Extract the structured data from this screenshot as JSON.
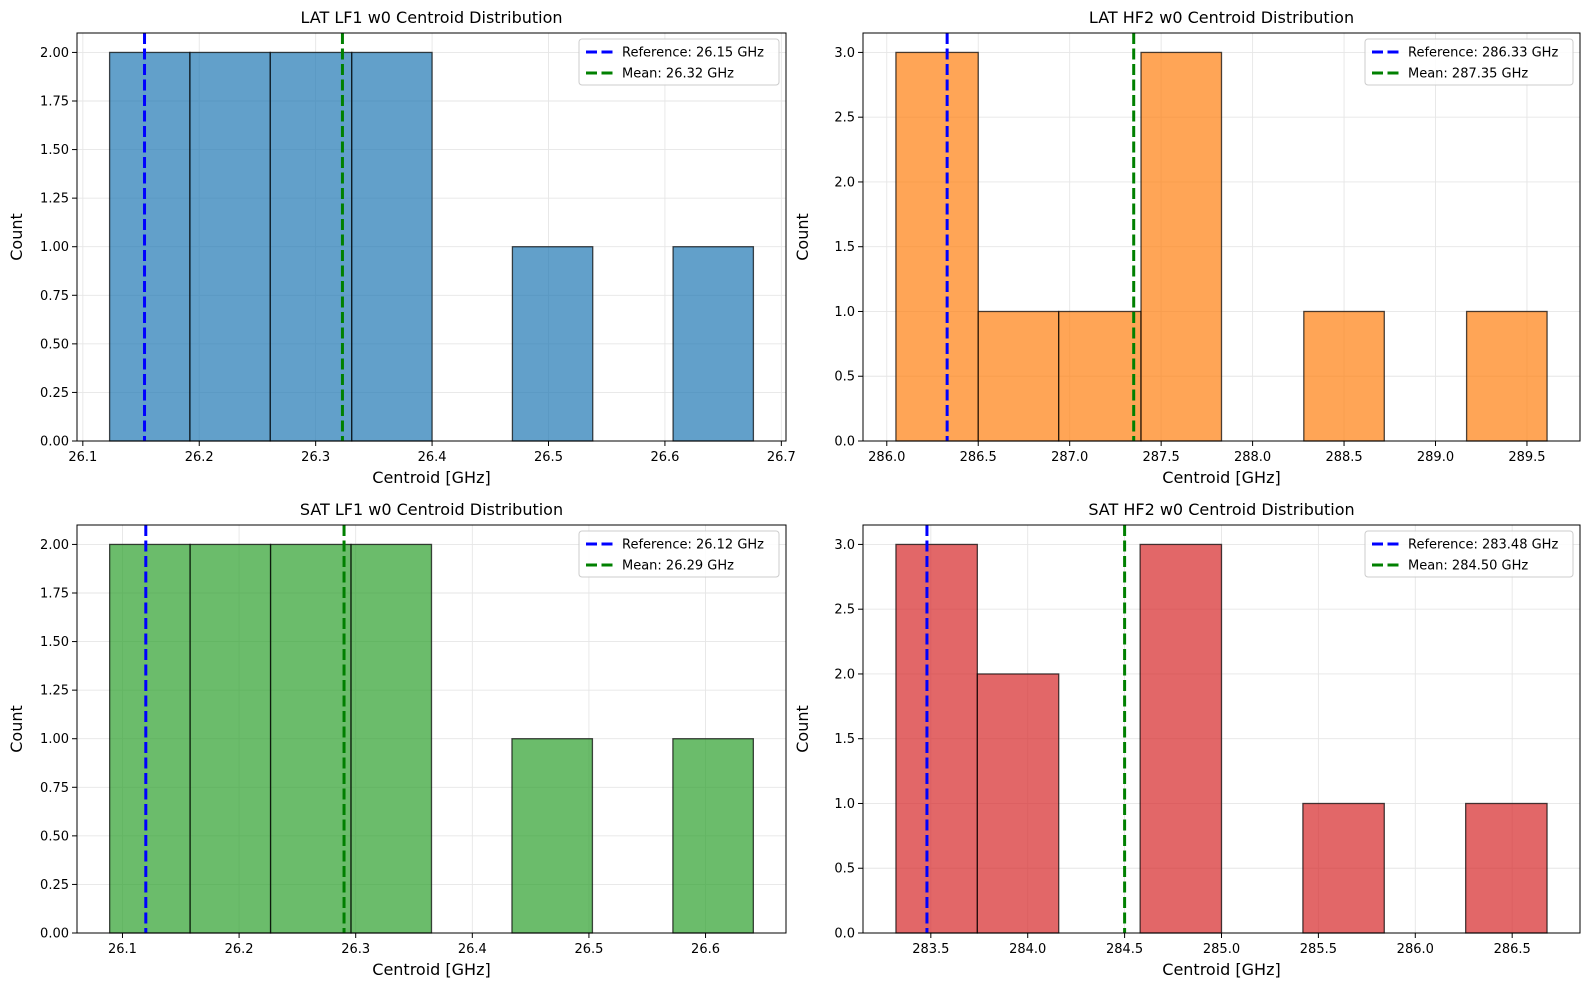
{
  "chart_data": [
    {
      "type": "bar",
      "title": "LAT LF1 w0 Centroid Distribution",
      "xlabel": "Centroid [GHz]",
      "ylabel": "Count",
      "color": "#1f77b4",
      "bins": [
        {
          "x0": 26.123,
          "x1": 26.192,
          "count": 2
        },
        {
          "x0": 26.192,
          "x1": 26.261,
          "count": 2
        },
        {
          "x0": 26.261,
          "x1": 26.331,
          "count": 2
        },
        {
          "x0": 26.331,
          "x1": 26.4,
          "count": 2
        },
        {
          "x0": 26.4,
          "x1": 26.469,
          "count": 0
        },
        {
          "x0": 26.469,
          "x1": 26.538,
          "count": 1
        },
        {
          "x0": 26.538,
          "x1": 26.607,
          "count": 0
        },
        {
          "x0": 26.607,
          "x1": 26.676,
          "count": 1
        }
      ],
      "xlim": [
        26.095,
        26.704
      ],
      "ylim": [
        0,
        2.1
      ],
      "xticks": [
        26.1,
        26.2,
        26.3,
        26.4,
        26.5,
        26.6,
        26.7
      ],
      "xtick_labels": [
        "26.1",
        "26.2",
        "26.3",
        "26.4",
        "26.5",
        "26.6",
        "26.7"
      ],
      "yticks": [
        0,
        0.25,
        0.5,
        0.75,
        1.0,
        1.25,
        1.5,
        1.75,
        2.0
      ],
      "ytick_labels": [
        "0.00",
        "0.25",
        "0.50",
        "0.75",
        "1.00",
        "1.25",
        "1.50",
        "1.75",
        "2.00"
      ],
      "reference": {
        "value": 26.153,
        "label": "Reference: 26.15 GHz"
      },
      "mean": {
        "value": 26.323,
        "label": "Mean: 26.32 GHz"
      },
      "grid": true,
      "legend": "upper right"
    },
    {
      "type": "bar",
      "title": "LAT HF2 w0 Centroid Distribution",
      "xlabel": "Centroid [GHz]",
      "ylabel": "Count",
      "color": "#ff7f0e",
      "bins": [
        {
          "x0": 286.05,
          "x1": 286.5,
          "count": 3
        },
        {
          "x0": 286.5,
          "x1": 286.94,
          "count": 1
        },
        {
          "x0": 286.94,
          "x1": 287.39,
          "count": 1
        },
        {
          "x0": 287.39,
          "x1": 287.83,
          "count": 3
        },
        {
          "x0": 287.83,
          "x1": 288.28,
          "count": 0
        },
        {
          "x0": 288.28,
          "x1": 288.72,
          "count": 1
        },
        {
          "x0": 288.72,
          "x1": 289.17,
          "count": 0
        },
        {
          "x0": 289.17,
          "x1": 289.61,
          "count": 1
        }
      ],
      "xlim": [
        285.87,
        289.79
      ],
      "ylim": [
        0,
        3.15
      ],
      "xticks": [
        286.0,
        286.5,
        287.0,
        287.5,
        288.0,
        288.5,
        289.0,
        289.5
      ],
      "xtick_labels": [
        "286.0",
        "286.5",
        "287.0",
        "287.5",
        "288.0",
        "288.5",
        "289.0",
        "289.5"
      ],
      "yticks": [
        0,
        0.5,
        1.0,
        1.5,
        2.0,
        2.5,
        3.0
      ],
      "ytick_labels": [
        "0.0",
        "0.5",
        "1.0",
        "1.5",
        "2.0",
        "2.5",
        "3.0"
      ],
      "reference": {
        "value": 286.33,
        "label": "Reference: 286.33 GHz"
      },
      "mean": {
        "value": 287.35,
        "label": "Mean: 287.35 GHz"
      },
      "grid": true,
      "legend": "upper right"
    },
    {
      "type": "bar",
      "title": "SAT LF1 w0 Centroid Distribution",
      "xlabel": "Centroid [GHz]",
      "ylabel": "Count",
      "color": "#2ca02c",
      "bins": [
        {
          "x0": 26.089,
          "x1": 26.158,
          "count": 2
        },
        {
          "x0": 26.158,
          "x1": 26.227,
          "count": 2
        },
        {
          "x0": 26.227,
          "x1": 26.296,
          "count": 2
        },
        {
          "x0": 26.296,
          "x1": 26.365,
          "count": 2
        },
        {
          "x0": 26.365,
          "x1": 26.434,
          "count": 0
        },
        {
          "x0": 26.434,
          "x1": 26.503,
          "count": 1
        },
        {
          "x0": 26.503,
          "x1": 26.572,
          "count": 0
        },
        {
          "x0": 26.572,
          "x1": 26.641,
          "count": 1
        }
      ],
      "xlim": [
        26.061,
        26.669
      ],
      "ylim": [
        0,
        2.1
      ],
      "xticks": [
        26.1,
        26.2,
        26.3,
        26.4,
        26.5,
        26.6
      ],
      "xtick_labels": [
        "26.1",
        "26.2",
        "26.3",
        "26.4",
        "26.5",
        "26.6"
      ],
      "yticks": [
        0,
        0.25,
        0.5,
        0.75,
        1.0,
        1.25,
        1.5,
        1.75,
        2.0
      ],
      "ytick_labels": [
        "0.00",
        "0.25",
        "0.50",
        "0.75",
        "1.00",
        "1.25",
        "1.50",
        "1.75",
        "2.00"
      ],
      "reference": {
        "value": 26.12,
        "label": "Reference: 26.12 GHz"
      },
      "mean": {
        "value": 26.29,
        "label": "Mean: 26.29 GHz"
      },
      "grid": true,
      "legend": "upper right"
    },
    {
      "type": "bar",
      "title": "SAT HF2 w0 Centroid Distribution",
      "xlabel": "Centroid [GHz]",
      "ylabel": "Count",
      "color": "#d62728",
      "bins": [
        {
          "x0": 283.32,
          "x1": 283.74,
          "count": 3
        },
        {
          "x0": 283.74,
          "x1": 284.16,
          "count": 2
        },
        {
          "x0": 284.16,
          "x1": 284.58,
          "count": 0
        },
        {
          "x0": 284.58,
          "x1": 285.0,
          "count": 3
        },
        {
          "x0": 285.0,
          "x1": 285.42,
          "count": 0
        },
        {
          "x0": 285.42,
          "x1": 285.84,
          "count": 1
        },
        {
          "x0": 285.84,
          "x1": 286.26,
          "count": 0
        },
        {
          "x0": 286.26,
          "x1": 286.68,
          "count": 1
        }
      ],
      "xlim": [
        283.15,
        286.85
      ],
      "ylim": [
        0,
        3.15
      ],
      "xticks": [
        283.5,
        284.0,
        284.5,
        285.0,
        285.5,
        286.0,
        286.5
      ],
      "xtick_labels": [
        "283.5",
        "284.0",
        "284.5",
        "285.0",
        "285.5",
        "286.0",
        "286.5"
      ],
      "yticks": [
        0,
        0.5,
        1.0,
        1.5,
        2.0,
        2.5,
        3.0
      ],
      "ytick_labels": [
        "0.0",
        "0.5",
        "1.0",
        "1.5",
        "2.0",
        "2.5",
        "3.0"
      ],
      "reference": {
        "value": 283.48,
        "label": "Reference: 283.48 GHz"
      },
      "mean": {
        "value": 284.5,
        "label": "Mean: 284.50 GHz"
      },
      "grid": true,
      "legend": "upper right"
    }
  ],
  "colors": {
    "reference_line": "#0000ff",
    "mean_line": "#008000",
    "grid": "#e6e6e6",
    "bar_edge": "#000000"
  }
}
